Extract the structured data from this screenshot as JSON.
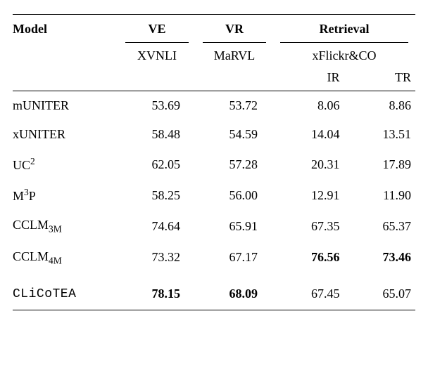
{
  "header": {
    "model": "Model",
    "ve": "VE",
    "vr": "VR",
    "retrieval": "Retrieval",
    "xvnli": "XVNLI",
    "marvl": "MaRVL",
    "xflickr": "xFlickr&CO",
    "ir": "IR",
    "tr": "TR"
  },
  "rows": [
    {
      "model": "mUNITER",
      "model_html": "mUNITER",
      "ve": "53.69",
      "vr": "53.72",
      "ir": "8.06",
      "tr": "8.86"
    },
    {
      "model": "xUNITER",
      "model_html": "xUNITER",
      "ve": "58.48",
      "vr": "54.59",
      "ir": "14.04",
      "tr": "13.51"
    },
    {
      "model": "UC2",
      "model_html": "UC<sup>2</sup>",
      "ve": "62.05",
      "vr": "57.28",
      "ir": "20.31",
      "tr": "17.89"
    },
    {
      "model": "M3P",
      "model_html": "M<sup>3</sup>P",
      "ve": "58.25",
      "vr": "56.00",
      "ir": "12.91",
      "tr": "11.90"
    },
    {
      "model": "CCLM3M",
      "model_html": "CCLM<sub>3M</sub>",
      "ve": "74.64",
      "vr": "65.91",
      "ir": "67.35",
      "tr": "65.37"
    },
    {
      "model": "CCLM4M",
      "model_html": "CCLM<sub>4M</sub>",
      "ve": "73.32",
      "vr": "67.17",
      "ir": "76.56",
      "ir_bold": true,
      "tr": "73.46",
      "tr_bold": true
    }
  ],
  "last_row": {
    "model": "CLiCoTEA",
    "model_html": "<span class='tt'>CLiCoTEA</span>",
    "ve": "78.15",
    "ve_bold": true,
    "vr": "68.09",
    "vr_bold": true,
    "ir": "67.45",
    "tr": "65.07"
  },
  "style": {
    "font_family": "Times New Roman",
    "font_size_pt": 14,
    "rule_color": "#000000",
    "text_color": "#000000",
    "background": "#ffffff"
  }
}
